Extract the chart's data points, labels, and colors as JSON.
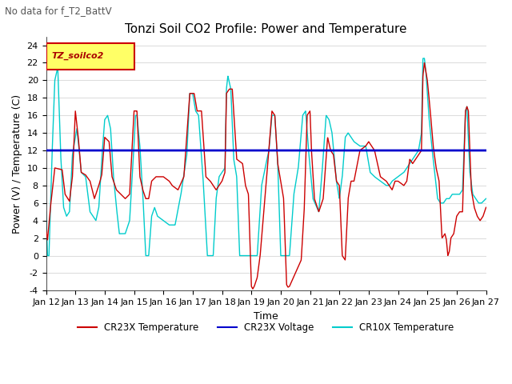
{
  "title": "Tonzi Soil CO2 Profile: Power and Temperature",
  "subtitle": "No data for f_T2_BattV",
  "xlabel": "Time",
  "ylabel": "Power (V) / Temperature (C)",
  "ylim": [
    -4,
    25
  ],
  "yticks": [
    -4,
    -2,
    0,
    2,
    4,
    6,
    8,
    10,
    12,
    14,
    16,
    18,
    20,
    22,
    24
  ],
  "xtick_labels": [
    "Jan 12",
    "Jan 13",
    "Jan 14",
    "Jan 15",
    "Jan 16",
    "Jan 17",
    "Jan 18",
    "Jan 19",
    "Jan 20",
    "Jan 21",
    "Jan 22",
    "Jan 23",
    "Jan 24",
    "Jan 25",
    "Jan 26",
    "Jan 27"
  ],
  "legend_entries": [
    "CR23X Temperature",
    "CR23X Voltage",
    "CR10X Temperature"
  ],
  "voltage_value": 12.0,
  "bg_color": "#ffffff",
  "grid_color": "#dddddd",
  "title_fontsize": 11,
  "axis_fontsize": 9,
  "tick_fontsize": 8
}
